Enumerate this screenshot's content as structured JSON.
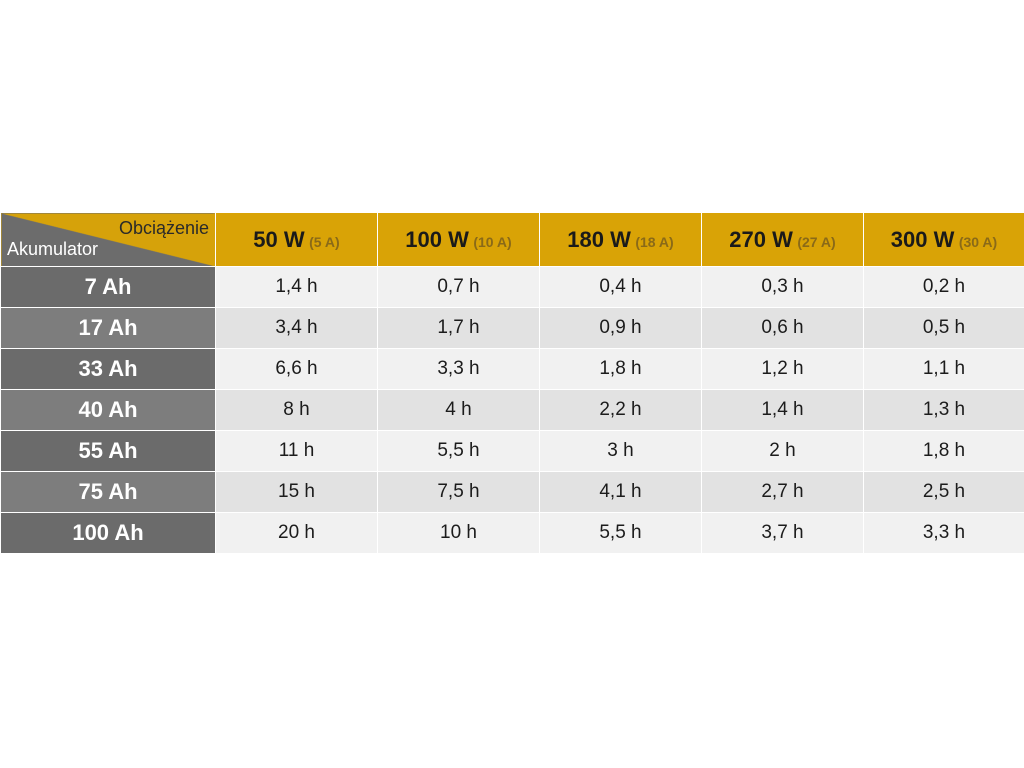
{
  "table": {
    "corner": {
      "top_label": "Obciążenie",
      "bottom_label": "Akumulator"
    },
    "loads": [
      {
        "watts": "50 W",
        "amps": "(5 A)"
      },
      {
        "watts": "100 W",
        "amps": "(10 A)"
      },
      {
        "watts": "180 W",
        "amps": "(18 A)"
      },
      {
        "watts": "270 W",
        "amps": "(27 A)"
      },
      {
        "watts": "300 W",
        "amps": "(30 A)"
      }
    ],
    "rows": [
      {
        "battery": "7 Ah",
        "values": [
          "1,4 h",
          "0,7 h",
          "0,4 h",
          "0,3 h",
          "0,2 h"
        ]
      },
      {
        "battery": "17 Ah",
        "values": [
          "3,4 h",
          "1,7 h",
          "0,9 h",
          "0,6 h",
          "0,5 h"
        ]
      },
      {
        "battery": "33 Ah",
        "values": [
          "6,6 h",
          "3,3 h",
          "1,8 h",
          "1,2 h",
          "1,1 h"
        ]
      },
      {
        "battery": "40 Ah",
        "values": [
          "8 h",
          "4 h",
          "2,2 h",
          "1,4 h",
          "1,3 h"
        ]
      },
      {
        "battery": "55 Ah",
        "values": [
          "11 h",
          "5,5 h",
          "3 h",
          "2 h",
          "1,8 h"
        ]
      },
      {
        "battery": "75 Ah",
        "values": [
          "15 h",
          "7,5 h",
          "4,1 h",
          "2,7 h",
          "2,5 h"
        ]
      },
      {
        "battery": "100 Ah",
        "values": [
          "20 h",
          "10 h",
          "5,5 h",
          "3,7 h",
          "3,3 h"
        ]
      }
    ],
    "colors": {
      "header_accent": "#d9a306",
      "row_header_dark": "#6b6b6b",
      "row_header_light": "#7d7d7d",
      "cell_light": "#f1f1f1",
      "cell_dark": "#e2e2e2"
    }
  }
}
